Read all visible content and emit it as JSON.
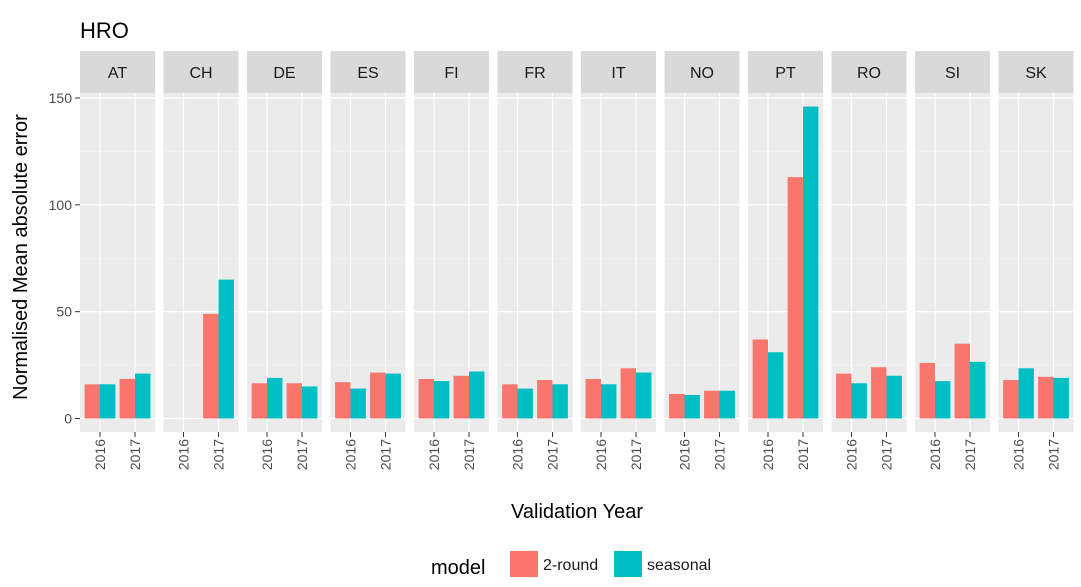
{
  "chart_data": {
    "type": "bar",
    "title": "HRO",
    "xlabel": "Validation Year",
    "ylabel": "Normalised Mean absolute error",
    "ylim": [
      0,
      150
    ],
    "yticks": [
      0,
      50,
      100,
      150
    ],
    "categories": [
      "2016",
      "2017"
    ],
    "facets": [
      "AT",
      "CH",
      "DE",
      "ES",
      "FI",
      "FR",
      "IT",
      "NO",
      "PT",
      "RO",
      "SI",
      "SK"
    ],
    "legend": {
      "title": "model",
      "position": "bottom"
    },
    "series": [
      {
        "name": "2-round",
        "color": "#F8766D",
        "values": {
          "AT": [
            16,
            18.5
          ],
          "CH": [
            null,
            49
          ],
          "DE": [
            16.5,
            16.5
          ],
          "ES": [
            17,
            21.5
          ],
          "FI": [
            18.5,
            20
          ],
          "FR": [
            16,
            18
          ],
          "IT": [
            18.5,
            23.5
          ],
          "NO": [
            11.5,
            13
          ],
          "PT": [
            37,
            113
          ],
          "RO": [
            21,
            24
          ],
          "SI": [
            26,
            35
          ],
          "SK": [
            18,
            19.5
          ]
        }
      },
      {
        "name": "seasonal",
        "color": "#00BFC4",
        "values": {
          "AT": [
            16,
            21
          ],
          "CH": [
            null,
            65
          ],
          "DE": [
            19,
            15
          ],
          "ES": [
            14,
            21
          ],
          "FI": [
            17.5,
            22
          ],
          "FR": [
            14,
            16
          ],
          "IT": [
            16,
            21.5
          ],
          "NO": [
            11,
            13
          ],
          "PT": [
            31,
            146
          ],
          "RO": [
            16.5,
            20
          ],
          "SI": [
            17.5,
            26.5
          ],
          "SK": [
            23.5,
            19
          ]
        }
      }
    ]
  }
}
